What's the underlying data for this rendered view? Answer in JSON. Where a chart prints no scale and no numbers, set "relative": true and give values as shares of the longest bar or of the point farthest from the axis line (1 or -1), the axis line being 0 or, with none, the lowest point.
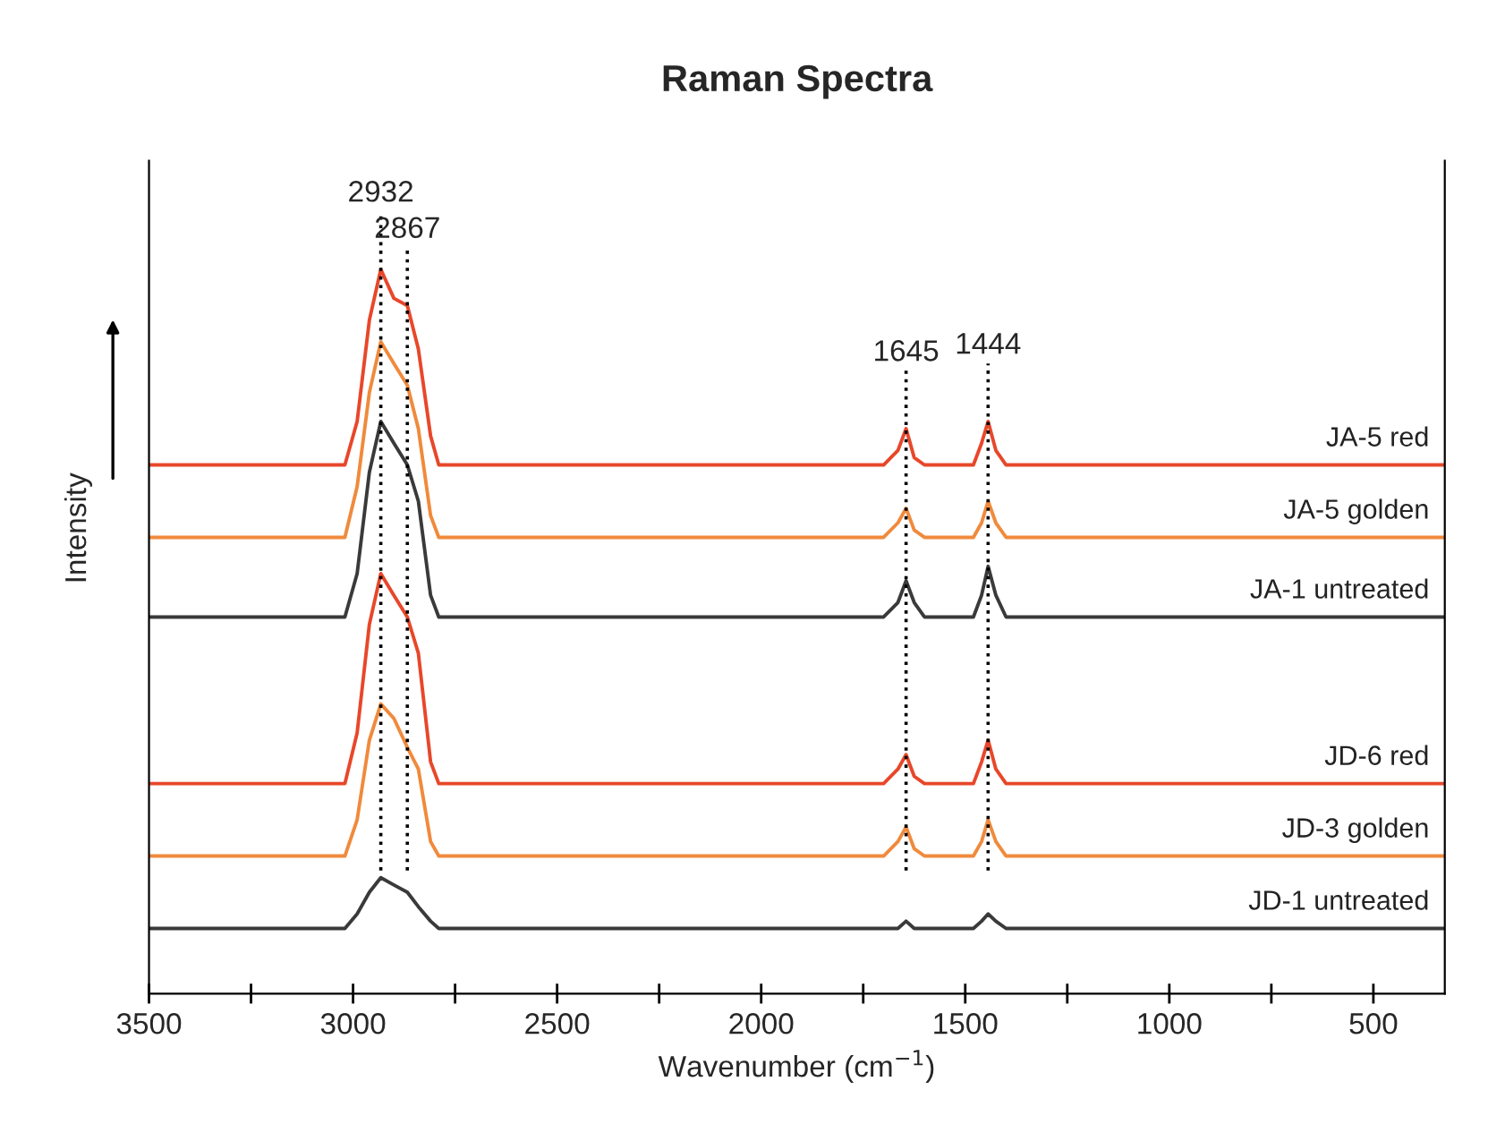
{
  "chart_data": {
    "type": "line",
    "title": "Raman Spectra",
    "xlabel": "Wavenumber (cm$^{−1}$)",
    "ylabel": "Intensity",
    "relative": true,
    "x": [
      3500,
      3200,
      3020,
      2990,
      2960,
      2932,
      2900,
      2867,
      2840,
      2810,
      2790,
      2500,
      2000,
      1700,
      1665,
      1645,
      1625,
      1600,
      1480,
      1460,
      1444,
      1425,
      1400,
      1200,
      800,
      325
    ],
    "series": [
      {
        "name": "JA-5 red",
        "color": "#e8472a",
        "values": [
          0.73,
          0.73,
          0.73,
          0.79,
          0.93,
          1.0,
          0.96,
          0.95,
          0.89,
          0.77,
          0.73,
          0.73,
          0.73,
          0.73,
          0.75,
          0.78,
          0.74,
          0.73,
          0.73,
          0.76,
          0.79,
          0.75,
          0.73,
          0.73,
          0.73,
          0.73
        ]
      },
      {
        "name": "JA-5 golden",
        "color": "#f08a3c",
        "values": [
          0.63,
          0.63,
          0.63,
          0.7,
          0.83,
          0.9,
          0.87,
          0.84,
          0.78,
          0.66,
          0.63,
          0.63,
          0.63,
          0.63,
          0.65,
          0.67,
          0.64,
          0.63,
          0.63,
          0.65,
          0.68,
          0.65,
          0.63,
          0.63,
          0.63,
          0.63
        ]
      },
      {
        "name": "JA-1 untreated",
        "color": "#3a3a3a",
        "values": [
          0.52,
          0.52,
          0.52,
          0.58,
          0.72,
          0.79,
          0.76,
          0.73,
          0.68,
          0.55,
          0.52,
          0.52,
          0.52,
          0.52,
          0.54,
          0.57,
          0.54,
          0.52,
          0.52,
          0.55,
          0.59,
          0.55,
          0.52,
          0.52,
          0.52,
          0.52
        ]
      },
      {
        "name": "JD-6 red",
        "color": "#e8472a",
        "values": [
          0.29,
          0.29,
          0.29,
          0.36,
          0.51,
          0.58,
          0.55,
          0.52,
          0.47,
          0.32,
          0.29,
          0.29,
          0.29,
          0.29,
          0.31,
          0.33,
          0.3,
          0.29,
          0.29,
          0.32,
          0.35,
          0.31,
          0.29,
          0.29,
          0.29,
          0.29
        ]
      },
      {
        "name": "JD-3 golden",
        "color": "#f08a3c",
        "values": [
          0.19,
          0.19,
          0.19,
          0.24,
          0.35,
          0.4,
          0.38,
          0.34,
          0.31,
          0.21,
          0.19,
          0.19,
          0.19,
          0.19,
          0.21,
          0.23,
          0.2,
          0.19,
          0.19,
          0.21,
          0.24,
          0.21,
          0.19,
          0.19,
          0.19,
          0.19
        ]
      },
      {
        "name": "JD-1 untreated",
        "color": "#3a3a3a",
        "values": [
          0.09,
          0.09,
          0.09,
          0.11,
          0.14,
          0.16,
          0.15,
          0.14,
          0.12,
          0.1,
          0.09,
          0.09,
          0.09,
          0.09,
          0.09,
          0.1,
          0.09,
          0.09,
          0.09,
          0.1,
          0.11,
          0.1,
          0.09,
          0.09,
          0.09,
          0.09
        ]
      }
    ],
    "xlim": [
      3500,
      325
    ],
    "xticks": [
      3500,
      {
        "value": 3250,
        "label": null
      },
      3000,
      {
        "value": 2750,
        "label": null
      },
      2500,
      {
        "value": 2250,
        "label": null
      },
      2000,
      {
        "value": 1750,
        "label": null
      },
      1500,
      {
        "value": 1250,
        "label": null
      },
      1000,
      {
        "value": 750,
        "label": null
      },
      500
    ],
    "ref_lines": [
      {
        "axis": "x",
        "value": 2932,
        "label": "2932",
        "line_style": "dotted",
        "color": "#000000"
      },
      {
        "axis": "x",
        "value": 2867,
        "label": "2867",
        "line_style": "dotted",
        "color": "#000000"
      },
      {
        "axis": "x",
        "value": 1645,
        "label": "1645",
        "line_style": "dotted",
        "color": "#000000"
      },
      {
        "axis": "x",
        "value": 1444,
        "label": "1444",
        "line_style": "dotted",
        "color": "#000000"
      }
    ],
    "grid": false,
    "legend": false,
    "line_style": "solid",
    "marker": "none"
  }
}
